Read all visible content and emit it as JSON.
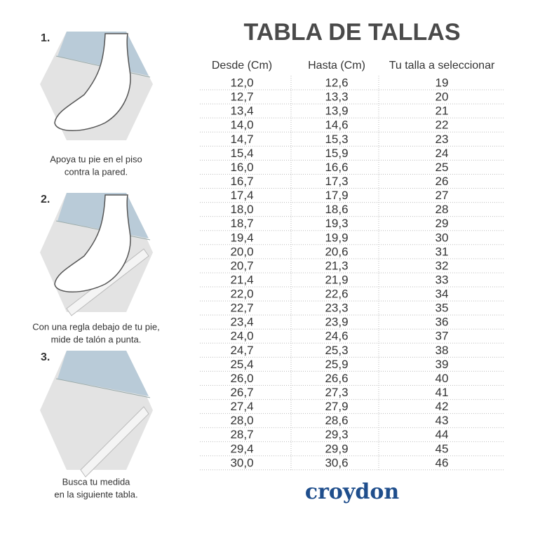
{
  "title": "TABLA DE TALLAS",
  "steps": [
    {
      "number": "1.",
      "lines": [
        "Apoya tu pie en el piso",
        "contra la pared."
      ]
    },
    {
      "number": "2.",
      "lines": [
        "Con una regla debajo de tu pie,",
        "mide de talón a punta."
      ]
    },
    {
      "number": "3.",
      "lines": [
        "Busca tu medida",
        "en la siguiente tabla."
      ]
    }
  ],
  "table": {
    "headers": [
      "Desde (Cm)",
      "Hasta (Cm)",
      "Tu talla a seleccionar"
    ],
    "rows": [
      [
        "12,0",
        "12,6",
        "19"
      ],
      [
        "12,7",
        "13,3",
        "20"
      ],
      [
        "13,4",
        "13,9",
        "21"
      ],
      [
        "14,0",
        "14,6",
        "22"
      ],
      [
        "14,7",
        "15,3",
        "23"
      ],
      [
        "15,4",
        "15,9",
        "24"
      ],
      [
        "16,0",
        "16,6",
        "25"
      ],
      [
        "16,7",
        "17,3",
        "26"
      ],
      [
        "17,4",
        "17,9",
        "27"
      ],
      [
        "18,0",
        "18,6",
        "28"
      ],
      [
        "18,7",
        "19,3",
        "29"
      ],
      [
        "19,4",
        "19,9",
        "30"
      ],
      [
        "20,0",
        "20,6",
        "31"
      ],
      [
        "20,7",
        "21,3",
        "32"
      ],
      [
        "21,4",
        "21,9",
        "33"
      ],
      [
        "22,0",
        "22,6",
        "34"
      ],
      [
        "22,7",
        "23,3",
        "35"
      ],
      [
        "23,4",
        "23,9",
        "36"
      ],
      [
        "24,0",
        "24,6",
        "37"
      ],
      [
        "24,7",
        "25,3",
        "38"
      ],
      [
        "25,4",
        "25,9",
        "39"
      ],
      [
        "26,0",
        "26,6",
        "40"
      ],
      [
        "26,7",
        "27,3",
        "41"
      ],
      [
        "27,4",
        "27,9",
        "42"
      ],
      [
        "28,0",
        "28,6",
        "43"
      ],
      [
        "28,7",
        "29,3",
        "44"
      ],
      [
        "29,4",
        "29,9",
        "45"
      ],
      [
        "30,0",
        "30,6",
        "46"
      ]
    ]
  },
  "brand": "croydon"
}
